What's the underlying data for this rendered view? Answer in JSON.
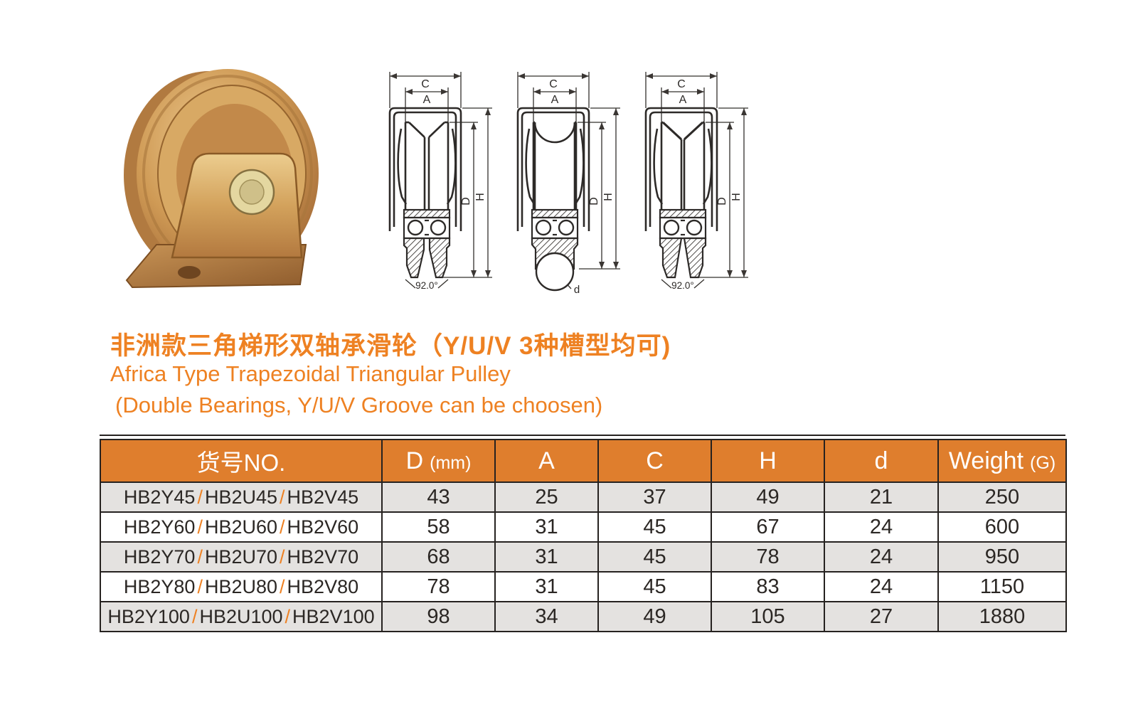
{
  "page": {
    "background": "#ffffff",
    "accent_color": "#EE8122",
    "table_header_bg": "#DF7E2D",
    "row_alt_bg": "#E4E2E0",
    "border_color": "#262220"
  },
  "product": {
    "title_cn": "非洲款三角梯形双轴承滑轮（Y/U/V 3种槽型均可)",
    "title_en": "Africa Type Trapezoidal Triangular Pulley",
    "subtitle_en": "(Double Bearings, Y/U/V Groove can be choosen)"
  },
  "drawings": {
    "labels": {
      "C": "C",
      "A": "A",
      "H": "H",
      "D": "D",
      "d": "d",
      "angle": "92.0°"
    }
  },
  "table": {
    "headers": [
      {
        "label": "货号NO.",
        "sub": ""
      },
      {
        "label": "D",
        "sub": "(mm)"
      },
      {
        "label": "A",
        "sub": ""
      },
      {
        "label": "C",
        "sub": ""
      },
      {
        "label": "H",
        "sub": ""
      },
      {
        "label": "d",
        "sub": ""
      },
      {
        "label": "Weight",
        "sub": "(G)"
      }
    ],
    "rows": [
      {
        "models": [
          "HB2Y45",
          "HB2U45",
          "HB2V45"
        ],
        "values": [
          "43",
          "25",
          "37",
          "49",
          "21",
          "250"
        ]
      },
      {
        "models": [
          "HB2Y60",
          "HB2U60",
          "HB2V60"
        ],
        "values": [
          "58",
          "31",
          "45",
          "67",
          "24",
          "600"
        ]
      },
      {
        "models": [
          "HB2Y70",
          "HB2U70",
          "HB2V70"
        ],
        "values": [
          "68",
          "31",
          "45",
          "78",
          "24",
          "950"
        ]
      },
      {
        "models": [
          "HB2Y80",
          "HB2U80",
          "HB2V80"
        ],
        "values": [
          "78",
          "31",
          "45",
          "83",
          "24",
          "1150"
        ]
      },
      {
        "models": [
          "HB2Y100",
          "HB2U100",
          "HB2V100"
        ],
        "values": [
          "98",
          "34",
          "49",
          "105",
          "27",
          "1880"
        ]
      }
    ]
  }
}
